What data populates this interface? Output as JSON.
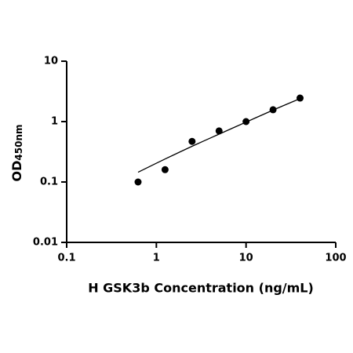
{
  "chart_data": {
    "type": "scatter",
    "x_label": "H GSK3b Concentration (ng/mL)",
    "y_label": "OD",
    "y_label_sub": "450nm",
    "x_log": true,
    "y_log": true,
    "xlim": [
      0.1,
      100
    ],
    "xticks": [
      0.1,
      1,
      10,
      100
    ],
    "ylim": [
      0.01,
      10
    ],
    "yticks": [
      0.01,
      0.1,
      1,
      10
    ],
    "series": [
      {
        "kind": "points",
        "color": "#000000",
        "x": [
          0.625,
          1.25,
          2.5,
          5,
          10,
          20,
          40
        ],
        "values": [
          0.1,
          0.16,
          0.47,
          0.7,
          1.0,
          1.57,
          2.45
        ]
      },
      {
        "kind": "fit",
        "color": "#000000",
        "x": [
          0.625,
          1.25,
          2.5,
          5,
          10,
          20,
          40
        ],
        "values": [
          0.145,
          0.24,
          0.39,
          0.62,
          0.98,
          1.55,
          2.4
        ]
      }
    ]
  }
}
